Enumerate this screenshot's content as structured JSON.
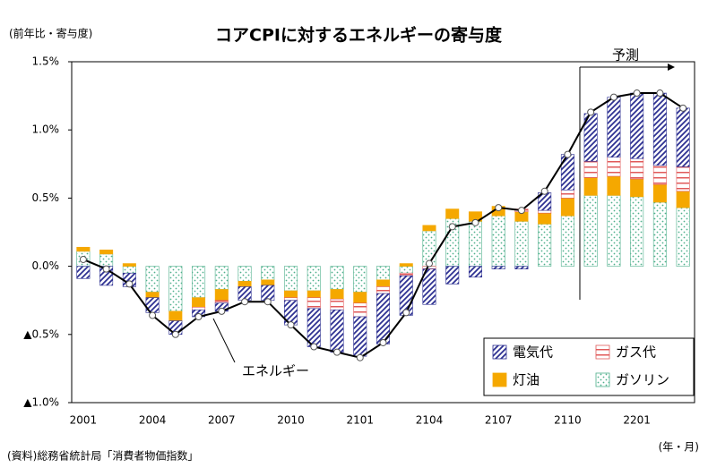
{
  "chart_data": {
    "type": "bar",
    "stacked": true,
    "title": "コアCPIに対するエネルギーの寄与度",
    "y_label": "(前年比・寄与度)",
    "x_label": "(年・月)",
    "source": "(資料)総務省統計局「消費者物価指数」",
    "annotations": [
      "予測"
    ],
    "categories": [
      "2001",
      null,
      null,
      "2004",
      null,
      null,
      "2007",
      null,
      null,
      "2010",
      null,
      null,
      "2101",
      null,
      null,
      "2104",
      null,
      null,
      "2107",
      null,
      null,
      "2110",
      null,
      null,
      "2201",
      null,
      null
    ],
    "ylim": [
      -1.0,
      1.5
    ],
    "yticks": [
      {
        "value": 1.5,
        "label": "1.5%"
      },
      {
        "value": 1.0,
        "label": "1.0%"
      },
      {
        "value": 0.5,
        "label": "0.5%"
      },
      {
        "value": 0.0,
        "label": "0.0%"
      },
      {
        "value": -0.5,
        "label": "▲0.5%"
      },
      {
        "value": -1.0,
        "label": "▲1.0%"
      }
    ],
    "grid": false,
    "legend": "bottom-right",
    "series": [
      {
        "name": "電気代",
        "color": "#2e3192",
        "values": [
          -0.09,
          -0.14,
          -0.1,
          -0.11,
          -0.1,
          -0.05,
          -0.06,
          -0.1,
          -0.11,
          -0.18,
          -0.28,
          -0.31,
          -0.29,
          -0.37,
          -0.29,
          -0.26,
          -0.13,
          -0.08,
          -0.02,
          -0.02,
          0.13,
          0.26,
          0.35,
          0.44,
          0.48,
          0.53,
          0.43
        ]
      },
      {
        "name": "ガス代",
        "color": "#e05a5a",
        "values": [
          0,
          0,
          0,
          0,
          0,
          -0.02,
          -0.02,
          0,
          0,
          -0.02,
          -0.08,
          -0.08,
          -0.1,
          -0.05,
          -0.02,
          -0.02,
          0,
          0,
          0,
          0.02,
          0.02,
          0.06,
          0.12,
          0.14,
          0.15,
          0.14,
          0.18
        ]
      },
      {
        "name": "灯油",
        "color": "#f5a800",
        "values": [
          0.03,
          0.03,
          0.02,
          -0.04,
          -0.07,
          -0.07,
          -0.08,
          -0.04,
          -0.04,
          -0.05,
          -0.05,
          -0.07,
          -0.08,
          -0.05,
          0.02,
          0.04,
          0.07,
          0.07,
          0.07,
          0.07,
          0.08,
          0.13,
          0.13,
          0.14,
          0.13,
          0.13,
          0.12
        ]
      },
      {
        "name": "ガソリン",
        "color": "#4fb08c",
        "values": [
          0.11,
          0.09,
          -0.05,
          -0.19,
          -0.33,
          -0.23,
          -0.17,
          -0.11,
          -0.1,
          -0.18,
          -0.18,
          -0.17,
          -0.19,
          -0.1,
          -0.05,
          0.26,
          0.35,
          0.33,
          0.37,
          0.33,
          0.31,
          0.37,
          0.52,
          0.52,
          0.51,
          0.47,
          0.43
        ]
      },
      {
        "name": "エネルギー",
        "type": "line",
        "color": "#000000",
        "values": [
          0.05,
          -0.02,
          -0.13,
          -0.36,
          -0.5,
          -0.37,
          -0.33,
          -0.26,
          -0.26,
          -0.43,
          -0.59,
          -0.63,
          -0.67,
          -0.56,
          -0.34,
          0.02,
          0.29,
          0.32,
          0.43,
          0.41,
          0.55,
          0.82,
          1.13,
          1.24,
          1.27,
          1.27,
          1.16
        ]
      }
    ]
  }
}
